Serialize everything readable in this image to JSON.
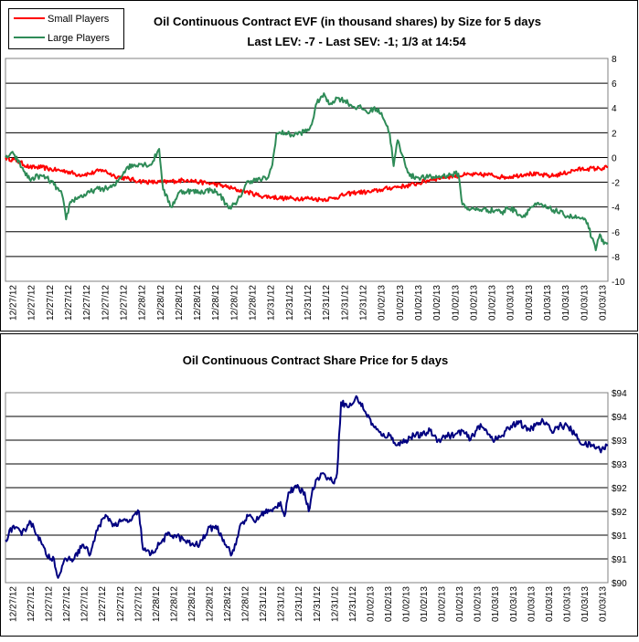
{
  "chart_data": [
    {
      "type": "line",
      "title": "Oil Continuous Contract EVF (in thousand shares) by Size for 5 days",
      "subtitle": "Last LEV: -7 - Last SEV: -1; 1/3 at 14:54",
      "xlabel": "",
      "ylabel": "",
      "ylim": [
        -10,
        8
      ],
      "yticks": [
        -10,
        -8,
        -6,
        -4,
        -2,
        0,
        2,
        4,
        6,
        8
      ],
      "grid": true,
      "legend_position": "top-left",
      "x_tick_labels": [
        "12/27/12",
        "12/27/12",
        "12/27/12",
        "12/27/12",
        "12/27/12",
        "12/27/12",
        "12/27/12",
        "12/28/12",
        "12/28/12",
        "12/28/12",
        "12/28/12",
        "12/28/12",
        "12/28/12",
        "12/28/12",
        "12/31/12",
        "12/31/12",
        "12/31/12",
        "12/31/12",
        "12/31/12",
        "12/31/12",
        "01/02/13",
        "01/02/13",
        "01/02/13",
        "01/02/13",
        "01/02/13",
        "01/02/13",
        "01/02/13",
        "01/03/13",
        "01/03/13",
        "01/03/13",
        "01/03/13",
        "01/03/13",
        "01/03/13"
      ],
      "x_count": 100,
      "series": [
        {
          "name": "Small Players",
          "color": "#ff0000",
          "anchors": [
            [
              0,
              0
            ],
            [
              3,
              -0.3
            ],
            [
              6,
              -0.8
            ],
            [
              9,
              -0.8
            ],
            [
              12,
              -1.0
            ],
            [
              15,
              -1.1
            ],
            [
              18,
              -1.4
            ],
            [
              21,
              -1.3
            ],
            [
              24,
              -1.0
            ],
            [
              27,
              -1.5
            ],
            [
              30,
              -1.7
            ],
            [
              33,
              -1.9
            ],
            [
              36,
              -2.0
            ],
            [
              39,
              -2.0
            ],
            [
              42,
              -1.9
            ],
            [
              45,
              -1.8
            ],
            [
              48,
              -2.0
            ],
            [
              51,
              -2.1
            ],
            [
              54,
              -2.3
            ],
            [
              57,
              -2.6
            ],
            [
              60,
              -2.8
            ],
            [
              63,
              -3.1
            ],
            [
              66,
              -3.2
            ],
            [
              69,
              -3.3
            ],
            [
              72,
              -3.3
            ],
            [
              75,
              -3.3
            ],
            [
              78,
              -3.4
            ],
            [
              81,
              -3.3
            ],
            [
              84,
              -3.0
            ],
            [
              87,
              -2.8
            ],
            [
              90,
              -2.8
            ],
            [
              93,
              -2.6
            ],
            [
              96,
              -2.4
            ],
            [
              99,
              -2.3
            ],
            [
              102,
              -2.1
            ],
            [
              105,
              -1.8
            ],
            [
              108,
              -1.6
            ],
            [
              111,
              -1.5
            ],
            [
              114,
              -1.4
            ],
            [
              117,
              -1.4
            ],
            [
              120,
              -1.4
            ],
            [
              123,
              -1.6
            ],
            [
              126,
              -1.5
            ],
            [
              129,
              -1.3
            ],
            [
              132,
              -1.4
            ],
            [
              135,
              -1.5
            ],
            [
              138,
              -1.3
            ],
            [
              141,
              -1.0
            ],
            [
              144,
              -0.9
            ],
            [
              147,
              -0.9
            ],
            [
              149,
              -0.8
            ]
          ],
          "noise": 0.18
        },
        {
          "name": "Large Players",
          "color": "#2e8b57",
          "anchors": [
            [
              0,
              0
            ],
            [
              2,
              0.3
            ],
            [
              4,
              -0.8
            ],
            [
              6,
              -1.8
            ],
            [
              8,
              -1.5
            ],
            [
              10,
              -1.6
            ],
            [
              12,
              -2.2
            ],
            [
              14,
              -3.0
            ],
            [
              15,
              -5.0
            ],
            [
              16,
              -3.6
            ],
            [
              18,
              -3.2
            ],
            [
              20,
              -3.0
            ],
            [
              22,
              -2.6
            ],
            [
              25,
              -2.5
            ],
            [
              27,
              -2.3
            ],
            [
              30,
              -0.8
            ],
            [
              33,
              -0.5
            ],
            [
              36,
              -0.6
            ],
            [
              38,
              0.7
            ],
            [
              39,
              -2.6
            ],
            [
              41,
              -4.0
            ],
            [
              43,
              -2.8
            ],
            [
              45,
              -2.7
            ],
            [
              48,
              -2.8
            ],
            [
              51,
              -2.6
            ],
            [
              53,
              -3.0
            ],
            [
              55,
              -4.0
            ],
            [
              57,
              -3.8
            ],
            [
              60,
              -1.9
            ],
            [
              63,
              -1.8
            ],
            [
              65,
              -1.6
            ],
            [
              66,
              -0.6
            ],
            [
              67,
              1.9
            ],
            [
              69,
              2.0
            ],
            [
              71,
              1.8
            ],
            [
              73,
              2.0
            ],
            [
              75,
              2.2
            ],
            [
              76,
              3.0
            ],
            [
              77,
              4.4
            ],
            [
              78,
              4.9
            ],
            [
              79,
              5.0
            ],
            [
              80,
              4.3
            ],
            [
              82,
              4.8
            ],
            [
              84,
              4.6
            ],
            [
              86,
              4.1
            ],
            [
              88,
              4.0
            ],
            [
              90,
              3.6
            ],
            [
              91,
              4.0
            ],
            [
              93,
              3.6
            ],
            [
              95,
              2.0
            ],
            [
              96,
              -0.7
            ],
            [
              97,
              1.4
            ],
            [
              98,
              0.3
            ],
            [
              100,
              -1.5
            ],
            [
              102,
              -1.6
            ],
            [
              104,
              -1.6
            ],
            [
              106,
              -1.6
            ],
            [
              108,
              -1.5
            ],
            [
              110,
              -1.4
            ],
            [
              112,
              -1.3
            ],
            [
              113,
              -3.8
            ],
            [
              115,
              -4.2
            ],
            [
              118,
              -4.2
            ],
            [
              121,
              -4.3
            ],
            [
              122,
              -4.2
            ],
            [
              123,
              -4.6
            ],
            [
              124,
              -4.0
            ],
            [
              126,
              -4.3
            ],
            [
              128,
              -4.8
            ],
            [
              130,
              -4.0
            ],
            [
              132,
              -3.8
            ],
            [
              134,
              -4.1
            ],
            [
              136,
              -4.3
            ],
            [
              138,
              -4.6
            ],
            [
              140,
              -4.8
            ],
            [
              142,
              -4.9
            ],
            [
              144,
              -5.3
            ],
            [
              145,
              -6.5
            ],
            [
              146,
              -7.5
            ],
            [
              147,
              -6.2
            ],
            [
              148,
              -7.0
            ],
            [
              149,
              -6.9
            ]
          ],
          "noise": 0.22
        }
      ]
    },
    {
      "type": "line",
      "title": "Oil Continuous Contract Share Price for 5 days",
      "xlabel": "",
      "ylabel": "",
      "ylim": [
        90,
        94
      ],
      "ytick_labels": [
        "$90",
        "$91",
        "$91",
        "$92",
        "$92",
        "$93",
        "$93",
        "$94",
        "$94"
      ],
      "ytick_values": [
        90,
        90.5,
        91,
        91.5,
        92,
        92.5,
        93,
        93.5,
        94
      ],
      "grid": true,
      "x_tick_labels": [
        "12/27/12",
        "12/27/12",
        "12/27/12",
        "12/27/12",
        "12/27/12",
        "12/27/12",
        "12/27/12",
        "12/27/12",
        "12/28/12",
        "12/28/12",
        "12/28/12",
        "12/28/12",
        "12/28/12",
        "12/28/12",
        "12/31/12",
        "12/31/12",
        "12/31/12",
        "12/31/12",
        "12/31/12",
        "12/31/12",
        "01/02/13",
        "01/02/13",
        "01/02/13",
        "01/02/13",
        "01/02/13",
        "01/02/13",
        "01/02/13",
        "01/03/13",
        "01/03/13",
        "01/03/13",
        "01/03/13",
        "01/03/13",
        "01/03/13",
        "01/03/13"
      ],
      "x_count": 100,
      "series": [
        {
          "name": "Share Price",
          "color": "#000080",
          "anchors": [
            [
              0,
              90.9
            ],
            [
              2,
              91.2
            ],
            [
              4,
              91.0
            ],
            [
              6,
              91.3
            ],
            [
              8,
              91.0
            ],
            [
              10,
              90.6
            ],
            [
              12,
              90.5
            ],
            [
              13,
              90.1
            ],
            [
              15,
              90.5
            ],
            [
              17,
              90.5
            ],
            [
              19,
              90.8
            ],
            [
              21,
              90.6
            ],
            [
              23,
              91.2
            ],
            [
              25,
              91.4
            ],
            [
              27,
              91.2
            ],
            [
              29,
              91.3
            ],
            [
              31,
              91.3
            ],
            [
              33,
              91.5
            ],
            [
              34,
              90.7
            ],
            [
              36,
              90.6
            ],
            [
              38,
              90.8
            ],
            [
              40,
              91.0
            ],
            [
              42,
              91.0
            ],
            [
              44,
              90.9
            ],
            [
              46,
              90.8
            ],
            [
              48,
              90.8
            ],
            [
              50,
              91.1
            ],
            [
              52,
              91.2
            ],
            [
              54,
              90.9
            ],
            [
              56,
              90.6
            ],
            [
              57,
              90.8
            ],
            [
              58,
              91.2
            ],
            [
              60,
              91.4
            ],
            [
              62,
              91.3
            ],
            [
              64,
              91.5
            ],
            [
              66,
              91.5
            ],
            [
              68,
              91.7
            ],
            [
              69,
              91.4
            ],
            [
              70,
              91.9
            ],
            [
              72,
              92.0
            ],
            [
              74,
              91.9
            ],
            [
              75,
              91.5
            ],
            [
              76,
              92.0
            ],
            [
              78,
              92.3
            ],
            [
              80,
              92.2
            ],
            [
              81,
              92.1
            ],
            [
              82,
              92.3
            ],
            [
              83,
              93.8
            ],
            [
              85,
              93.7
            ],
            [
              87,
              93.9
            ],
            [
              89,
              93.6
            ],
            [
              91,
              93.3
            ],
            [
              93,
              93.1
            ],
            [
              95,
              93.1
            ],
            [
              97,
              92.9
            ],
            [
              99,
              93.0
            ],
            [
              101,
              93.1
            ],
            [
              103,
              93.1
            ],
            [
              105,
              93.2
            ],
            [
              107,
              93.0
            ],
            [
              109,
              93.1
            ],
            [
              111,
              93.1
            ],
            [
              113,
              93.2
            ],
            [
              115,
              93.0
            ],
            [
              117,
              93.3
            ],
            [
              119,
              93.2
            ],
            [
              121,
              93.0
            ],
            [
              123,
              93.1
            ],
            [
              125,
              93.3
            ],
            [
              127,
              93.4
            ],
            [
              129,
              93.2
            ],
            [
              131,
              93.3
            ],
            [
              133,
              93.4
            ],
            [
              135,
              93.2
            ],
            [
              137,
              93.3
            ],
            [
              139,
              93.3
            ],
            [
              141,
              93.1
            ],
            [
              143,
              92.9
            ],
            [
              145,
              92.9
            ],
            [
              147,
              92.8
            ],
            [
              149,
              92.9
            ]
          ],
          "noise": 0.07
        }
      ]
    }
  ]
}
